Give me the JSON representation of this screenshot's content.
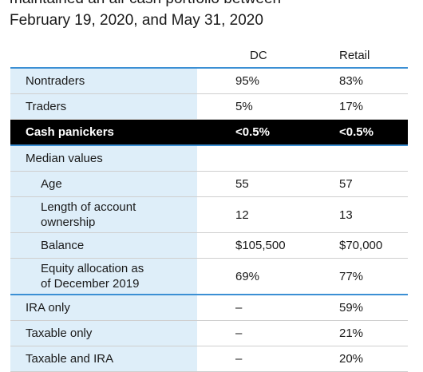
{
  "caption": {
    "line1": "maintained an all-cash portfolio between",
    "line2": "February 19, 2020, and May 31, 2020"
  },
  "table": {
    "columns": [
      "",
      "DC",
      "Retail"
    ],
    "rows": [
      {
        "label": "Nontraders",
        "dc": "95%",
        "retail": "83%"
      },
      {
        "label": "Traders",
        "dc": "5%",
        "retail": "17%"
      },
      {
        "label": "Cash panickers",
        "dc": "<0.5%",
        "retail": "<0.5%"
      },
      {
        "label": "Median values",
        "dc": "",
        "retail": ""
      },
      {
        "label": "Age",
        "dc": "55",
        "retail": "57"
      },
      {
        "label_line1": "Length of account",
        "label_line2": "ownership",
        "dc": "12",
        "retail": "13"
      },
      {
        "label": "Balance",
        "dc": "$105,500",
        "retail": "$70,000"
      },
      {
        "label_line1": "Equity allocation as",
        "label_line2": "of December 2019",
        "dc": "69%",
        "retail": "77%"
      },
      {
        "label": "IRA only",
        "dc": "–",
        "retail": "59%"
      },
      {
        "label": "Taxable only",
        "dc": "–",
        "retail": "21%"
      },
      {
        "label": "Taxable and IRA",
        "dc": "–",
        "retail": "20%"
      }
    ]
  }
}
